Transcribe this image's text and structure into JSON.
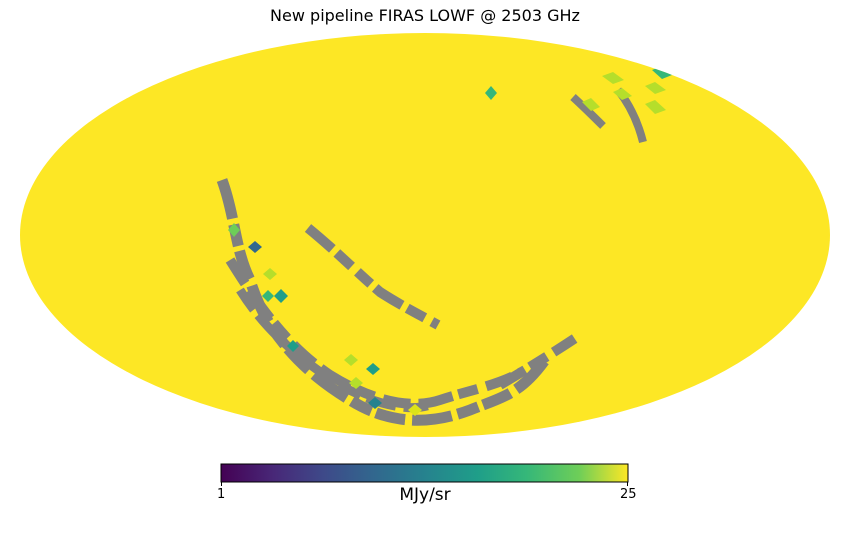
{
  "chart_data": {
    "type": "heatmap",
    "title": "New pipeline FIRAS LOWF @ 2503 GHz",
    "projection": "mollweide",
    "colormap": "viridis",
    "background_color": "#fde725",
    "missing_color": "#808080",
    "colorbar": {
      "label": "MJy/sr",
      "min": 1,
      "max": 25,
      "tick_labels": [
        "1",
        "25"
      ],
      "orientation": "horizontal",
      "position": "bottom"
    },
    "grid": false
  }
}
